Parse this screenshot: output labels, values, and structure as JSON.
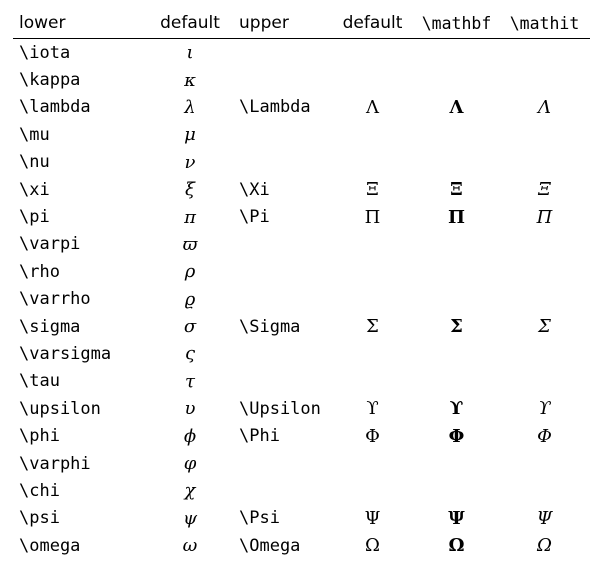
{
  "headers": {
    "lower": "lower",
    "lower_default": "default",
    "upper": "upper",
    "upper_default": "default",
    "mathbf": "\\mathbf",
    "mathit": "\\mathit"
  },
  "rows": [
    {
      "lower": "\\iota",
      "lower_symbol": "ι",
      "upper": "",
      "upper_default": "",
      "upper_bf": "",
      "upper_it": ""
    },
    {
      "lower": "\\kappa",
      "lower_symbol": "κ",
      "upper": "",
      "upper_default": "",
      "upper_bf": "",
      "upper_it": ""
    },
    {
      "lower": "\\lambda",
      "lower_symbol": "λ",
      "upper": "\\Lambda",
      "upper_default": "Λ",
      "upper_bf": "Λ",
      "upper_it": "Λ"
    },
    {
      "lower": "\\mu",
      "lower_symbol": "μ",
      "upper": "",
      "upper_default": "",
      "upper_bf": "",
      "upper_it": ""
    },
    {
      "lower": "\\nu",
      "lower_symbol": "ν",
      "upper": "",
      "upper_default": "",
      "upper_bf": "",
      "upper_it": ""
    },
    {
      "lower": "\\xi",
      "lower_symbol": "ξ",
      "upper": "\\Xi",
      "upper_default": "Ξ",
      "upper_bf": "Ξ",
      "upper_it": "Ξ"
    },
    {
      "lower": "\\pi",
      "lower_symbol": "π",
      "upper": "\\Pi",
      "upper_default": "Π",
      "upper_bf": "Π",
      "upper_it": "Π"
    },
    {
      "lower": "\\varpi",
      "lower_symbol": "ϖ",
      "upper": "",
      "upper_default": "",
      "upper_bf": "",
      "upper_it": ""
    },
    {
      "lower": "\\rho",
      "lower_symbol": "ρ",
      "upper": "",
      "upper_default": "",
      "upper_bf": "",
      "upper_it": ""
    },
    {
      "lower": "\\varrho",
      "lower_symbol": "ϱ",
      "upper": "",
      "upper_default": "",
      "upper_bf": "",
      "upper_it": ""
    },
    {
      "lower": "\\sigma",
      "lower_symbol": "σ",
      "upper": "\\Sigma",
      "upper_default": "Σ",
      "upper_bf": "Σ",
      "upper_it": "Σ"
    },
    {
      "lower": "\\varsigma",
      "lower_symbol": "ς",
      "upper": "",
      "upper_default": "",
      "upper_bf": "",
      "upper_it": ""
    },
    {
      "lower": "\\tau",
      "lower_symbol": "τ",
      "upper": "",
      "upper_default": "",
      "upper_bf": "",
      "upper_it": ""
    },
    {
      "lower": "\\upsilon",
      "lower_symbol": "υ",
      "upper": "\\Upsilon",
      "upper_default": "ϒ",
      "upper_bf": "ϒ",
      "upper_it": "ϒ"
    },
    {
      "lower": "\\phi",
      "lower_symbol": "ϕ",
      "upper": "\\Phi",
      "upper_default": "Φ",
      "upper_bf": "Φ",
      "upper_it": "Φ"
    },
    {
      "lower": "\\varphi",
      "lower_symbol": "φ",
      "upper": "",
      "upper_default": "",
      "upper_bf": "",
      "upper_it": ""
    },
    {
      "lower": "\\chi",
      "lower_symbol": "χ",
      "upper": "",
      "upper_default": "",
      "upper_bf": "",
      "upper_it": ""
    },
    {
      "lower": "\\psi",
      "lower_symbol": "ψ",
      "upper": "\\Psi",
      "upper_default": "Ψ",
      "upper_bf": "Ψ",
      "upper_it": "Ψ"
    },
    {
      "lower": "\\omega",
      "lower_symbol": "ω",
      "upper": "\\Omega",
      "upper_default": "Ω",
      "upper_bf": "Ω",
      "upper_it": "Ω"
    }
  ]
}
